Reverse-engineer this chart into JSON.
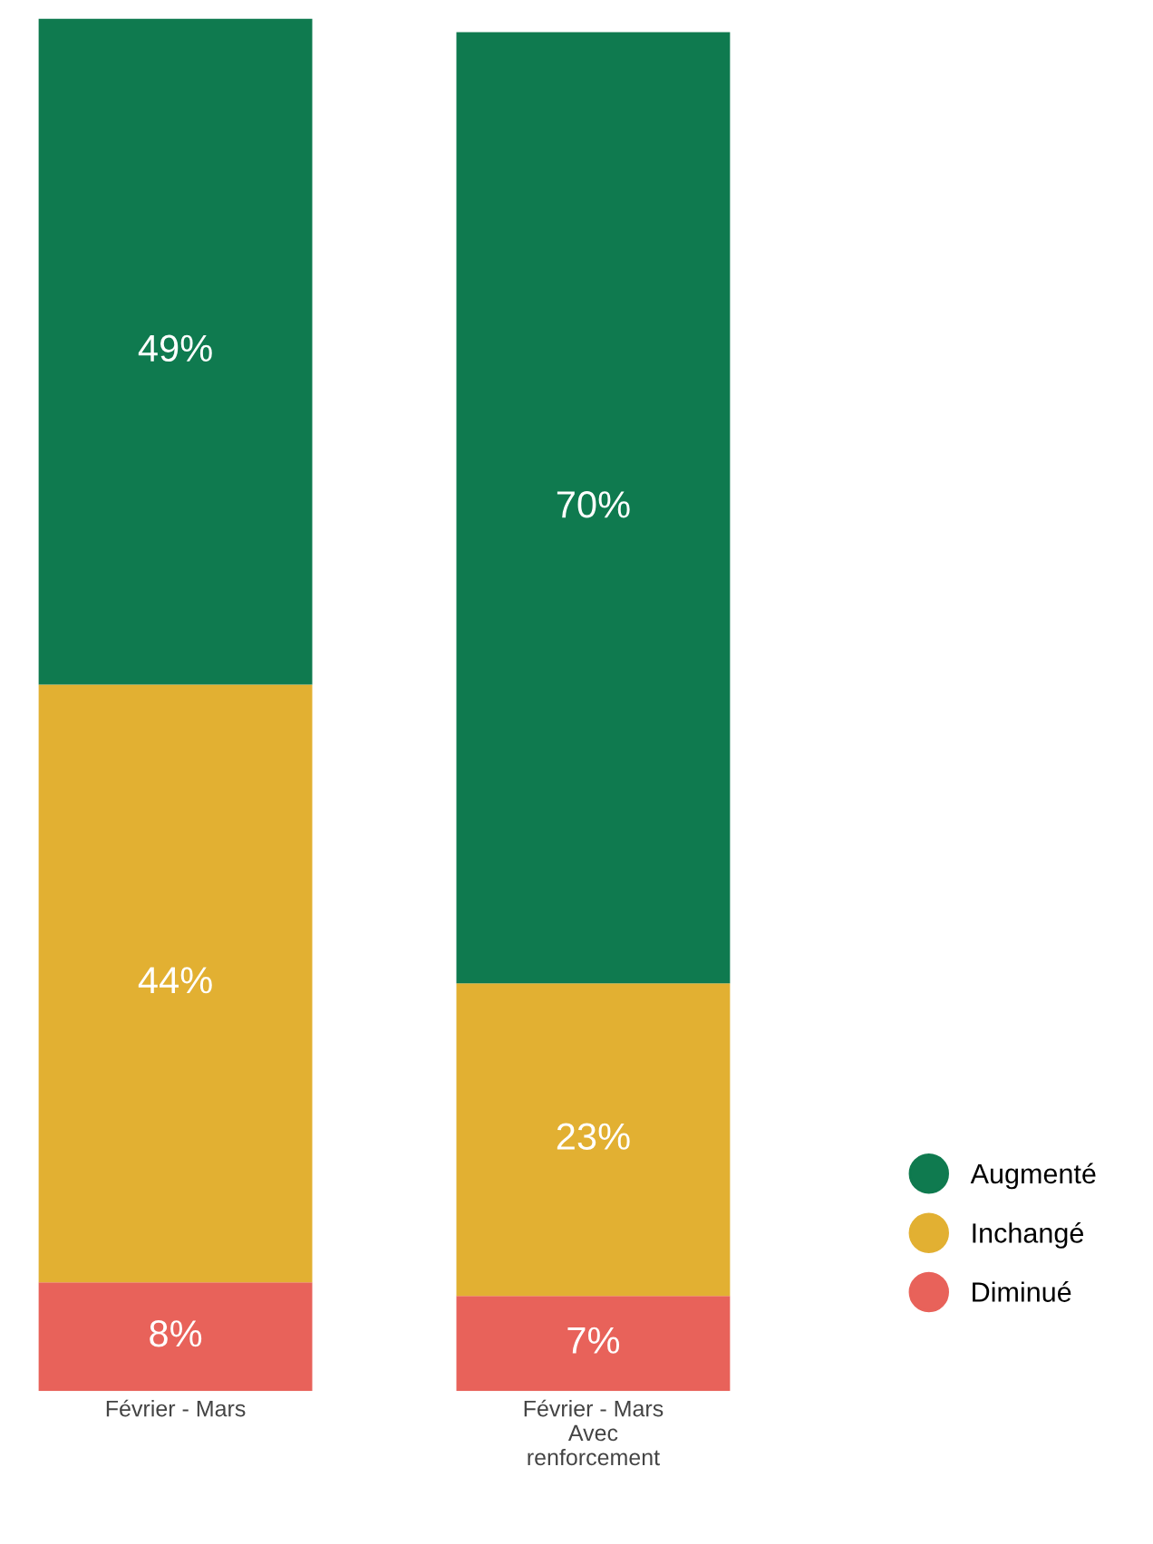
{
  "chart_data": {
    "type": "bar",
    "stacked": true,
    "legend": "right",
    "grid": false,
    "tick_labels": "x",
    "categories": [
      "Février - Mars",
      "Février - Mars\nAvec\nrenforcement"
    ],
    "series": [
      {
        "name": "Diminué",
        "color": "#e8625a",
        "values": [
          8,
          7
        ],
        "value_labels": [
          "8%",
          "7%"
        ]
      },
      {
        "name": "Inchangé",
        "color": "#e2b032",
        "values": [
          44,
          23
        ],
        "value_labels": [
          "44%",
          "23%"
        ]
      },
      {
        "name": "Augmenté",
        "color": "#0f7a4f",
        "values": [
          49,
          70
        ],
        "value_labels": [
          "49%",
          "70%"
        ]
      }
    ]
  }
}
